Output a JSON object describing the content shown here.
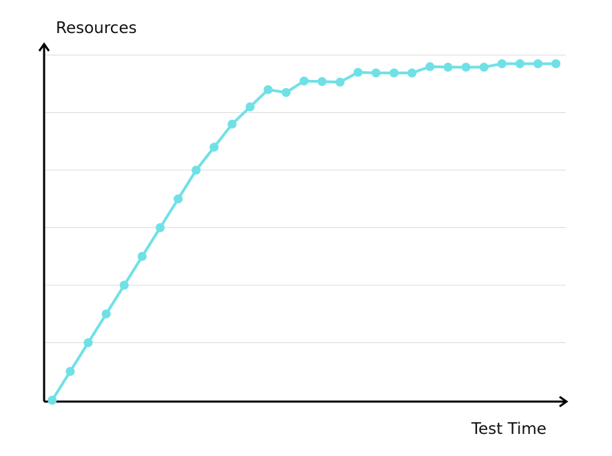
{
  "chart_data": {
    "type": "line",
    "title": "",
    "xlabel": "Test Time",
    "ylabel": "Resources",
    "x": [
      1,
      2,
      3,
      4,
      5,
      6,
      7,
      8,
      9,
      10,
      11,
      12,
      13,
      14,
      15,
      16,
      17,
      18,
      19,
      20,
      21,
      22,
      23,
      24,
      25,
      26,
      27,
      28,
      29
    ],
    "series": [
      {
        "name": "",
        "values": [
          0.0,
          0.5,
          1.0,
          1.5,
          2.0,
          2.5,
          3.0,
          3.5,
          4.0,
          4.4,
          4.8,
          5.1,
          5.4,
          5.35,
          5.55,
          5.54,
          5.53,
          5.7,
          5.69,
          5.69,
          5.69,
          5.8,
          5.79,
          5.79,
          5.79,
          5.85,
          5.85,
          5.85,
          5.85
        ]
      }
    ],
    "xlim": [
      0.55,
      29.55
    ],
    "ylim": [
      0,
      6
    ],
    "grid": true,
    "gridlines_y": [
      1,
      2,
      3,
      4,
      5,
      6
    ],
    "legend": "none",
    "colors": {
      "series": "#6fe1e6",
      "grid": "#d9d9d9",
      "axis": "#000000"
    }
  }
}
